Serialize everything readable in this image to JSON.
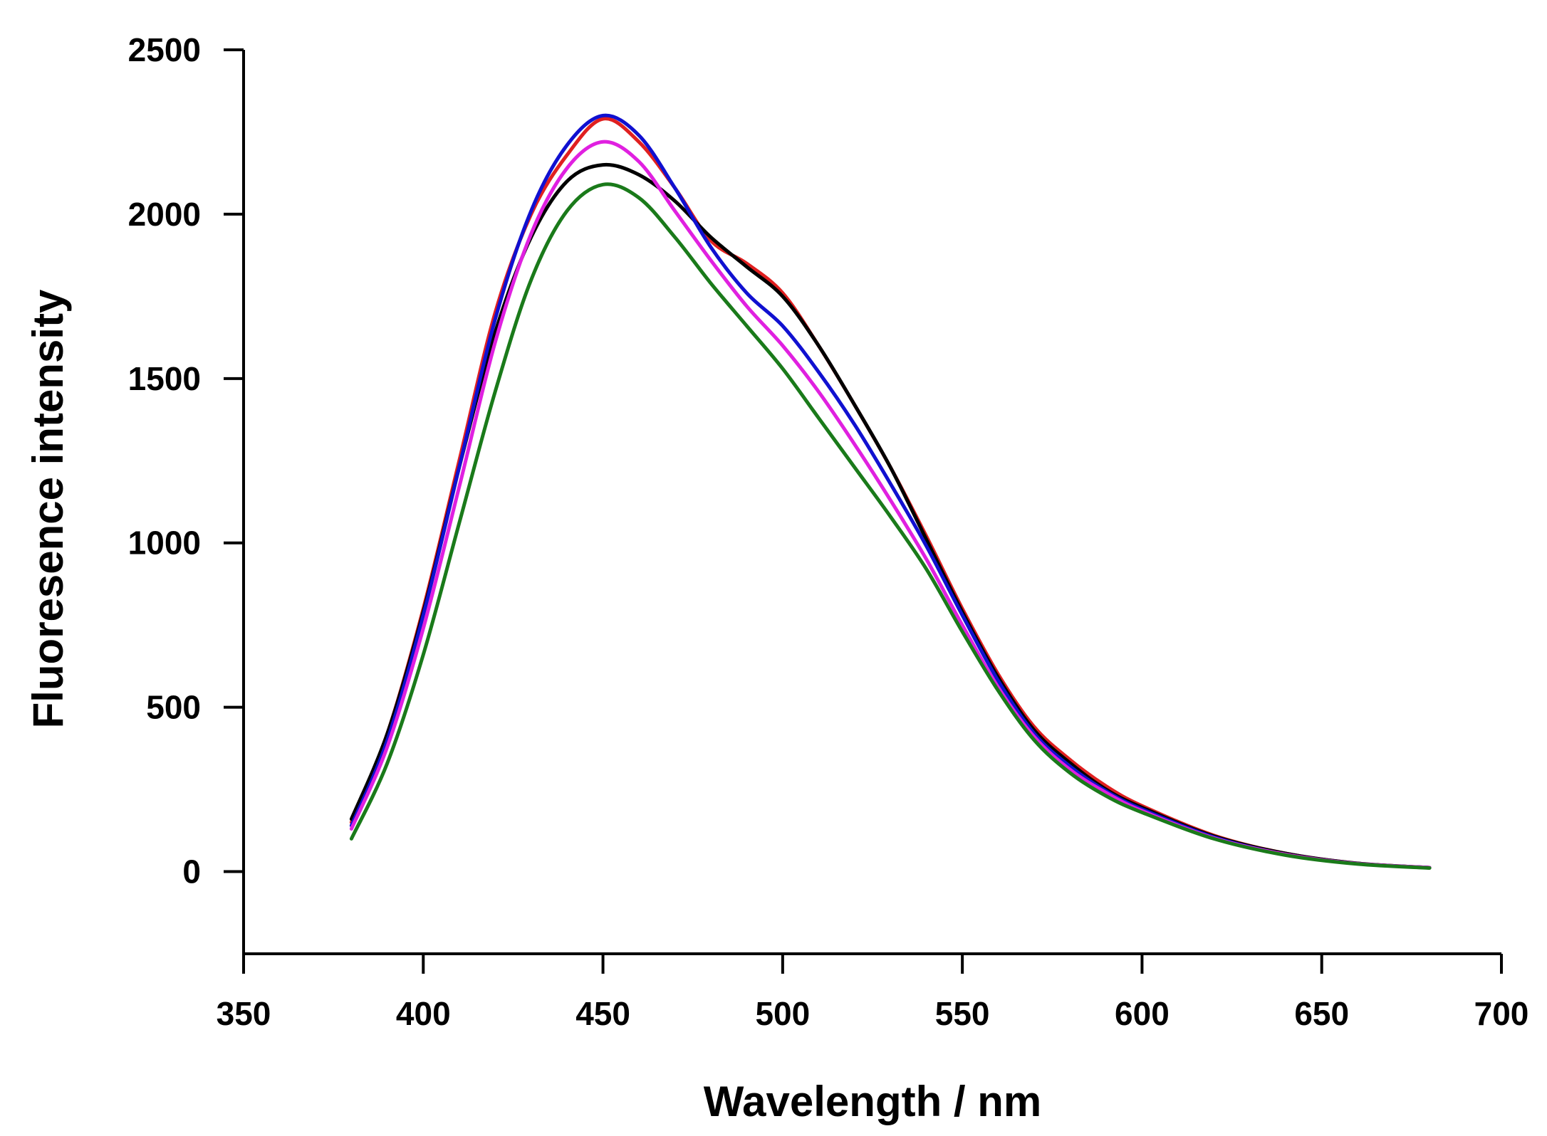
{
  "chart_data": {
    "type": "line",
    "title": "",
    "xlabel": "Wavelength / nm",
    "ylabel": "Fluoresence intensity",
    "xlim": [
      350,
      700
    ],
    "ylim": [
      -250,
      2500
    ],
    "xticks": [
      350,
      400,
      450,
      500,
      550,
      600,
      650,
      700
    ],
    "yticks": [
      0,
      500,
      1000,
      1500,
      2000,
      2500
    ],
    "grid": false,
    "legend": "none",
    "x": [
      380,
      390,
      400,
      410,
      420,
      430,
      440,
      450,
      460,
      470,
      480,
      490,
      500,
      510,
      520,
      530,
      540,
      550,
      560,
      570,
      580,
      590,
      600,
      620,
      640,
      660,
      680
    ],
    "series": [
      {
        "name": "red",
        "color": "#e02020",
        "values": [
          150,
          420,
          800,
          1250,
          1700,
          2000,
          2180,
          2290,
          2220,
          2080,
          1920,
          1850,
          1760,
          1600,
          1420,
          1230,
          1020,
          800,
          600,
          440,
          340,
          260,
          200,
          110,
          55,
          25,
          12
        ]
      },
      {
        "name": "black",
        "color": "#000000",
        "values": [
          160,
          420,
          790,
          1230,
          1640,
          1930,
          2100,
          2150,
          2120,
          2040,
          1930,
          1840,
          1750,
          1600,
          1420,
          1230,
          1010,
          790,
          590,
          430,
          330,
          250,
          195,
          108,
          55,
          25,
          12
        ]
      },
      {
        "name": "blue",
        "color": "#1010d0",
        "values": [
          140,
          400,
          780,
          1230,
          1680,
          2010,
          2210,
          2300,
          2240,
          2080,
          1900,
          1760,
          1660,
          1520,
          1360,
          1180,
          990,
          780,
          580,
          420,
          320,
          245,
          190,
          105,
          52,
          24,
          12
        ]
      },
      {
        "name": "magenta",
        "color": "#e020e0",
        "values": [
          130,
          380,
          740,
          1170,
          1610,
          1940,
          2140,
          2220,
          2160,
          2010,
          1860,
          1720,
          1600,
          1460,
          1300,
          1130,
          950,
          750,
          560,
          410,
          310,
          240,
          185,
          102,
          52,
          24,
          12
        ]
      },
      {
        "name": "green",
        "color": "#1a7a1a",
        "values": [
          100,
          330,
          660,
          1060,
          1460,
          1800,
          2010,
          2090,
          2050,
          1930,
          1790,
          1660,
          1530,
          1380,
          1230,
          1080,
          920,
          730,
          550,
          400,
          300,
          230,
          180,
          100,
          50,
          23,
          11
        ]
      }
    ]
  }
}
